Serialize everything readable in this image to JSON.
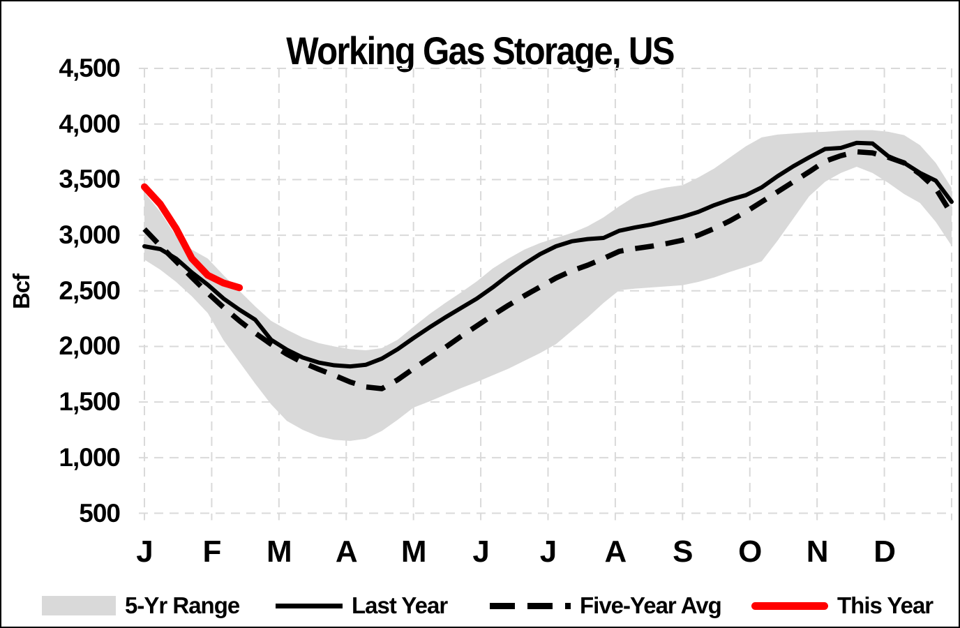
{
  "title": "Working Gas Storage, US",
  "y_axis": {
    "label": "Bcf",
    "tick_labels": [
      "4,500",
      "4,000",
      "3,500",
      "3,000",
      "2,500",
      "2,000",
      "1,500",
      "1,000",
      "500"
    ],
    "tick_values": [
      4500,
      4000,
      3500,
      3000,
      2500,
      2000,
      1500,
      1000,
      500
    ]
  },
  "x_axis": {
    "tick_labels": [
      "J",
      "F",
      "M",
      "A",
      "M",
      "J",
      "J",
      "A",
      "S",
      "O",
      "N",
      "D"
    ]
  },
  "legend": {
    "items": [
      {
        "label": "5-Yr Range",
        "swatch": "band-swatch",
        "color": "#d9d9d9"
      },
      {
        "label": "Last Year",
        "swatch": "solid-line-swatch",
        "color": "#000000"
      },
      {
        "label": "Five-Year Avg",
        "swatch": "dashed-line-swatch",
        "color": "#000000"
      },
      {
        "label": "This Year",
        "swatch": "thick-line-swatch",
        "color": "#ff0000"
      }
    ]
  },
  "colors": {
    "band": "#d9d9d9",
    "gridline": "#d9d9d9",
    "last_year": "#000000",
    "five_year_avg": "#000000",
    "this_year": "#ff0000",
    "text": "#000000",
    "background": "#ffffff"
  },
  "chart_data": {
    "type": "line",
    "title": "Working Gas Storage, US",
    "xlabel": "",
    "ylabel": "Bcf",
    "ylim": [
      500,
      4500
    ],
    "y_tick_step": 500,
    "grid": "dashed",
    "legend_position": "bottom",
    "x_unit": "week-of-year (52 weekly points, Jan through Dec)",
    "x_month_labels": [
      "J",
      "F",
      "M",
      "A",
      "M",
      "J",
      "J",
      "A",
      "S",
      "O",
      "N",
      "D"
    ],
    "series": [
      {
        "name": "5-Yr Range",
        "type": "band",
        "upper": [
          3385,
          3210,
          2990,
          2870,
          2790,
          2640,
          2500,
          2360,
          2230,
          2150,
          2080,
          2030,
          2000,
          1975,
          1965,
          1985,
          2060,
          2175,
          2290,
          2390,
          2485,
          2585,
          2700,
          2790,
          2870,
          2930,
          2975,
          3020,
          3080,
          3160,
          3260,
          3350,
          3400,
          3430,
          3450,
          3520,
          3600,
          3700,
          3800,
          3880,
          3905,
          3915,
          3925,
          3930,
          3940,
          3945,
          3945,
          3930,
          3900,
          3810,
          3650,
          3425
        ],
        "lower": [
          2780,
          2690,
          2580,
          2450,
          2300,
          2055,
          1860,
          1665,
          1480,
          1330,
          1250,
          1190,
          1160,
          1150,
          1170,
          1240,
          1340,
          1450,
          1505,
          1565,
          1625,
          1680,
          1740,
          1800,
          1870,
          1940,
          2020,
          2140,
          2260,
          2390,
          2505,
          2520,
          2530,
          2540,
          2550,
          2580,
          2620,
          2670,
          2715,
          2765,
          2950,
          3150,
          3350,
          3480,
          3560,
          3615,
          3560,
          3470,
          3370,
          3290,
          3120,
          2905
        ]
      },
      {
        "name": "Last Year",
        "type": "line-solid",
        "values": [
          2900,
          2875,
          2790,
          2665,
          2555,
          2430,
          2330,
          2240,
          2060,
          1970,
          1900,
          1855,
          1830,
          1820,
          1835,
          1890,
          1975,
          2075,
          2170,
          2260,
          2345,
          2430,
          2530,
          2640,
          2740,
          2830,
          2900,
          2945,
          2965,
          2975,
          3040,
          3070,
          3095,
          3130,
          3165,
          3210,
          3270,
          3320,
          3360,
          3430,
          3530,
          3620,
          3700,
          3775,
          3785,
          3830,
          3825,
          3710,
          3650,
          3560,
          3490,
          3300
        ]
      },
      {
        "name": "Five-Year Avg",
        "type": "line-dashed",
        "values": [
          3055,
          2905,
          2765,
          2620,
          2480,
          2350,
          2230,
          2120,
          2020,
          1930,
          1855,
          1795,
          1740,
          1680,
          1635,
          1620,
          1700,
          1800,
          1895,
          1990,
          2090,
          2185,
          2280,
          2370,
          2455,
          2535,
          2615,
          2680,
          2730,
          2790,
          2855,
          2880,
          2900,
          2925,
          2955,
          3000,
          3060,
          3130,
          3210,
          3300,
          3390,
          3480,
          3570,
          3665,
          3715,
          3750,
          3740,
          3700,
          3650,
          3550,
          3420,
          3190
        ]
      },
      {
        "name": "This Year",
        "type": "line-thick",
        "values": [
          3435,
          3280,
          3060,
          2790,
          2640,
          2570,
          2528
        ]
      }
    ]
  }
}
